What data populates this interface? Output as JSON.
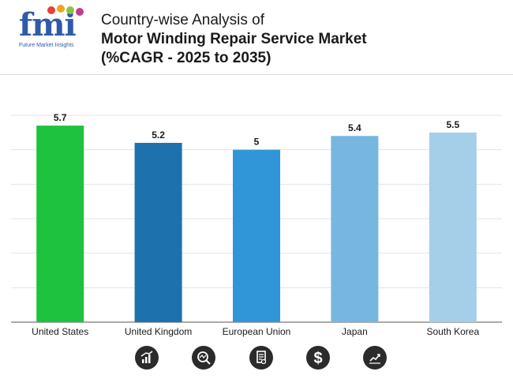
{
  "header": {
    "logo_text": "fmi",
    "logo_subtitle": "Future Market Insights",
    "title_line1": "Country-wise Analysis of",
    "title_line2": "Motor Winding Repair Service Market",
    "title_line3": "(%CAGR - 2025 to 2035)"
  },
  "chart_data": {
    "type": "bar",
    "title": "Country-wise Analysis of Motor Winding Repair Service Market (%CAGR - 2025 to 2035)",
    "categories": [
      "United States",
      "United Kingdom",
      "European Union",
      "Japan",
      "South Korea"
    ],
    "values": [
      5.7,
      5.2,
      5,
      5.4,
      5.5
    ],
    "value_labels": [
      "5.7",
      "5.2",
      "5",
      "5.4",
      "5.5"
    ],
    "colors": [
      "#1ec23e",
      "#1d71ad",
      "#3196d8",
      "#76b6e0",
      "#a5cfe8"
    ],
    "ylim": [
      0,
      6
    ],
    "grid": true,
    "xlabel": "",
    "ylabel": ""
  },
  "icons": [
    "growth-chart-icon",
    "magnifier-analysis-icon",
    "document-icon",
    "dollar-icon",
    "line-chart-icon"
  ],
  "colors": {
    "brand": "#2e5aa8",
    "icon_bg": "#2b2b2b",
    "grid": "#e3e3e3"
  }
}
